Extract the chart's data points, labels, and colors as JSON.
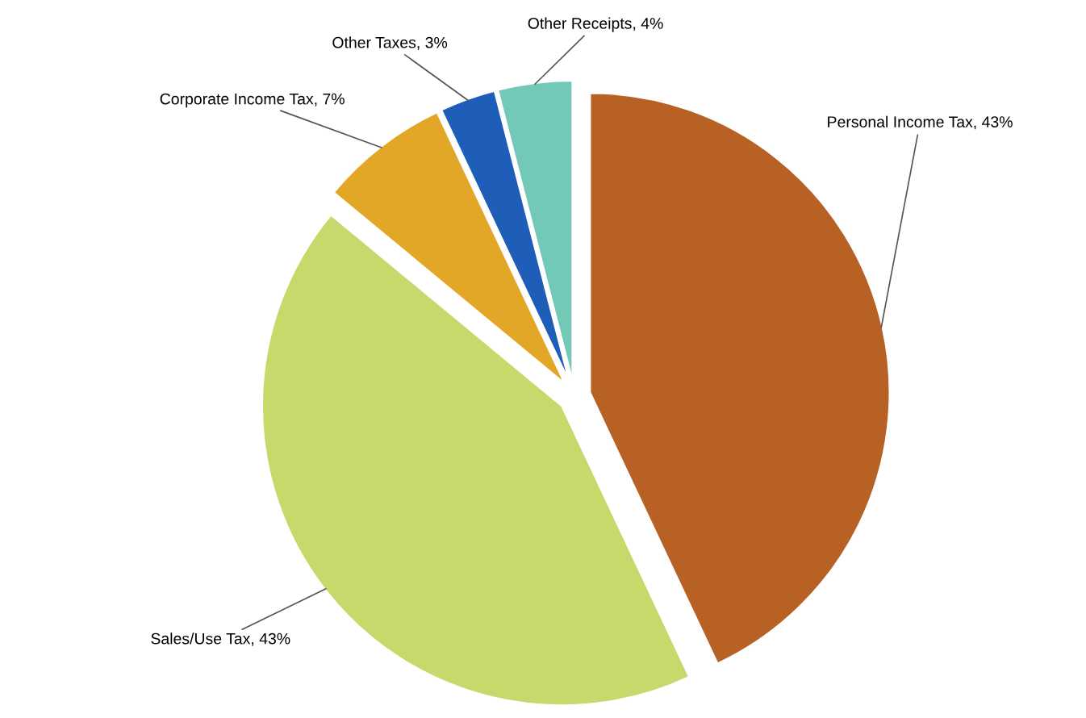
{
  "chart_data": {
    "type": "pie",
    "categories": [
      "Personal Income Tax",
      "Sales/Use Tax",
      "Corporate Income Tax",
      "Other Taxes",
      "Other Receipts"
    ],
    "values": [
      43,
      43,
      7,
      3,
      4
    ],
    "value_labels": [
      "43%",
      "43%",
      "7%",
      "3%",
      "4%"
    ],
    "colors": [
      "#b86125",
      "#c8d86a",
      "#e2a726",
      "#1e5eb8",
      "#72c9b8"
    ]
  }
}
